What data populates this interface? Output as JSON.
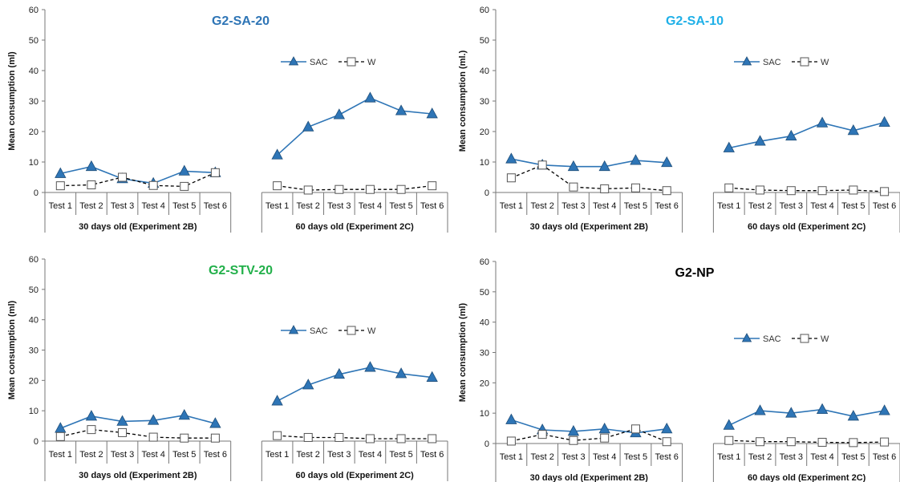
{
  "chart_data": [
    {
      "type": "line",
      "title": "G2-SA-20",
      "title_color": "#2e75b6",
      "ylabel": "Mean consumption (ml)",
      "ylim": [
        0,
        60
      ],
      "yticks": [
        0,
        10,
        20,
        30,
        40,
        50,
        60
      ],
      "groups": [
        {
          "label": "30 days old (Experiment 2B)",
          "categories": [
            "Test 1",
            "Test 2",
            "Test 3",
            "Test 4",
            "Test 5",
            "Test 6"
          ]
        },
        {
          "label": "60 days old (Experiment 2C)",
          "categories": [
            "Test 1",
            "Test 2",
            "Test 3",
            "Test 4",
            "Test 5",
            "Test 6"
          ]
        }
      ],
      "series": [
        {
          "name": "SAC",
          "color": "#2e75b6",
          "marker": "triangle",
          "values": [
            [
              6.2,
              8.5,
              4.5,
              3.0,
              7.0,
              6.5
            ],
            [
              12.3,
              21.5,
              25.5,
              31.0,
              26.8,
              25.8
            ]
          ]
        },
        {
          "name": "W",
          "color": "#000000",
          "marker": "square",
          "values": [
            [
              2.2,
              2.5,
              5.0,
              2.3,
              2.0,
              6.5
            ],
            [
              2.2,
              0.8,
              1.0,
              1.0,
              1.0,
              2.2
            ]
          ]
        }
      ],
      "legend": "top-right"
    },
    {
      "type": "line",
      "title": "G2-SA-10",
      "title_color": "#1fb0e8",
      "ylabel": "Mean consumption (ml.)",
      "ylim": [
        0,
        60
      ],
      "yticks": [
        0,
        10,
        20,
        30,
        40,
        50,
        60
      ],
      "groups": [
        {
          "label": "30 days old (Experiment 2B)",
          "categories": [
            "Test 1",
            "Test 2",
            "Test 3",
            "Test 4",
            "Test 5",
            "Test 6"
          ]
        },
        {
          "label": "60 days old (Experiment 2C)",
          "categories": [
            "Test 1",
            "Test 2",
            "Test 3",
            "Test 4",
            "Test 5",
            "Test 6"
          ]
        }
      ],
      "series": [
        {
          "name": "SAC",
          "color": "#2e75b6",
          "marker": "triangle",
          "values": [
            [
              11.0,
              9.0,
              8.5,
              8.5,
              10.5,
              9.8
            ],
            [
              14.6,
              16.8,
              18.5,
              22.8,
              20.3,
              23.0
            ]
          ]
        },
        {
          "name": "W",
          "color": "#000000",
          "marker": "square",
          "values": [
            [
              4.8,
              9.0,
              1.8,
              1.2,
              1.5,
              0.6
            ],
            [
              1.5,
              0.8,
              0.6,
              0.6,
              0.8,
              0.3
            ]
          ]
        }
      ],
      "legend": "top-right"
    },
    {
      "type": "line",
      "title": "G2-STV-20",
      "title_color": "#22b04a",
      "ylabel": "Mean consumption (ml)",
      "ylim": [
        0,
        60
      ],
      "yticks": [
        0,
        10,
        20,
        30,
        40,
        50,
        60
      ],
      "groups": [
        {
          "label": "30 days old (Experiment 2B)",
          "categories": [
            "Test 1",
            "Test 2",
            "Test 3",
            "Test 4",
            "Test 5",
            "Test 6"
          ]
        },
        {
          "label": "60 days old (Experiment 2C)",
          "categories": [
            "Test 1",
            "Test 2",
            "Test 3",
            "Test 4",
            "Test 5",
            "Test 6"
          ]
        }
      ],
      "series": [
        {
          "name": "SAC",
          "color": "#2e75b6",
          "marker": "triangle",
          "values": [
            [
              4.2,
              8.2,
              6.5,
              6.8,
              8.5,
              5.8
            ],
            [
              13.2,
              18.5,
              22.0,
              24.3,
              22.2,
              21.0
            ]
          ]
        },
        {
          "name": "W",
          "color": "#000000",
          "marker": "square",
          "values": [
            [
              1.5,
              3.8,
              2.8,
              1.3,
              1.0,
              1.0
            ],
            [
              1.8,
              1.2,
              1.2,
              0.8,
              0.8,
              0.8
            ]
          ]
        }
      ],
      "legend": "top-right"
    },
    {
      "type": "line",
      "title": "G2-NP",
      "title_color": "#000000",
      "ylabel": "Mean consumption (ml)",
      "ylim": [
        0,
        60
      ],
      "yticks": [
        0,
        10,
        20,
        30,
        40,
        50,
        60
      ],
      "groups": [
        {
          "label": "30 days old (Experiment 2B)",
          "categories": [
            "Test 1",
            "Test 2",
            "Test 3",
            "Test 4",
            "Test 5",
            "Test 6"
          ]
        },
        {
          "label": "60 days old (Experiment 2C)",
          "categories": [
            "Test 1",
            "Test 2",
            "Test 3",
            "Test 4",
            "Test 5",
            "Test 6"
          ]
        }
      ],
      "series": [
        {
          "name": "SAC",
          "color": "#2e75b6",
          "marker": "triangle",
          "values": [
            [
              7.8,
              4.5,
              4.0,
              4.8,
              3.5,
              4.8
            ],
            [
              6.0,
              10.8,
              10.0,
              11.2,
              9.0,
              10.8
            ]
          ]
        },
        {
          "name": "W",
          "color": "#000000",
          "marker": "square",
          "values": [
            [
              0.8,
              3.0,
              1.0,
              1.8,
              4.8,
              0.6
            ],
            [
              1.0,
              0.6,
              0.6,
              0.4,
              0.3,
              0.5
            ]
          ]
        }
      ],
      "legend": "top-right"
    }
  ]
}
